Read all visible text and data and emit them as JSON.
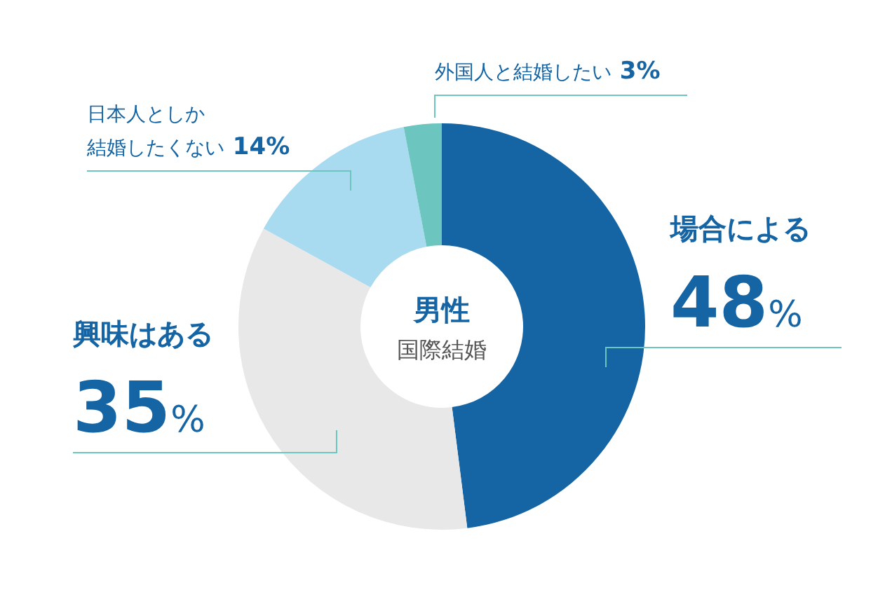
{
  "chart_data": {
    "type": "donut",
    "title": "男性",
    "subtitle": "国際結婚",
    "categories": [
      "場合による",
      "興味はある",
      "日本人としか結婚したくない",
      "外国人と結婚したい"
    ],
    "values": [
      48,
      35,
      14,
      3
    ],
    "colors": [
      "#1565a5",
      "#e8e8e8",
      "#a8daf0",
      "#6cc5bf"
    ],
    "value_labels": [
      "48%",
      "35%",
      "14%",
      "3%"
    ]
  }
}
